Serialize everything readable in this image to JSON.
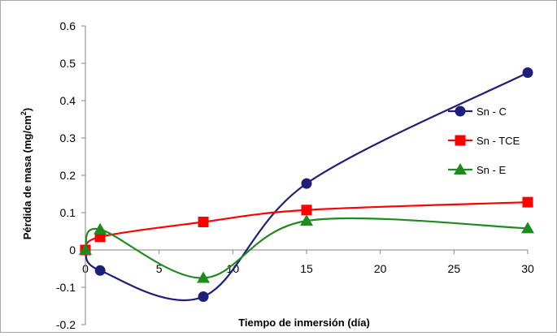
{
  "chart_data": {
    "type": "line",
    "title": "",
    "xlabel": "Tiempo de inmersión (día)",
    "ylabel": "Pérdida de masa (mg/cm",
    "ylabel_sup": "2",
    "ylabel_close": ")",
    "xlim": [
      0,
      30
    ],
    "ylim": [
      -0.2,
      0.6
    ],
    "xticks": [
      0,
      5,
      10,
      15,
      20,
      25,
      30
    ],
    "yticks": [
      -0.2,
      -0.1,
      0,
      0.1,
      0.2,
      0.3,
      0.4,
      0.5,
      0.6
    ],
    "xtick_labels": [
      "0",
      "5",
      "10",
      "15",
      "20",
      "25",
      "30"
    ],
    "ytick_labels": [
      "-0.2",
      "-0.1",
      "0",
      "0.1",
      "0.2",
      "0.3",
      "0.4",
      "0.5",
      "0.6"
    ],
    "grid": false,
    "legend_position": "right",
    "x": [
      0,
      1,
      8,
      15,
      30
    ],
    "series": [
      {
        "name": "Sn - C",
        "color": "#1f1f7a",
        "marker": "circle",
        "values": [
          0,
          -0.055,
          -0.125,
          0.178,
          0.475
        ]
      },
      {
        "name": "Sn - TCE",
        "color": "#ff0000",
        "marker": "square",
        "values": [
          0,
          0.035,
          0.075,
          0.107,
          0.128
        ]
      },
      {
        "name": "Sn - E",
        "color": "#1f8a1f",
        "marker": "triangle",
        "values": [
          0,
          0.055,
          -0.075,
          0.078,
          0.058
        ]
      }
    ]
  }
}
